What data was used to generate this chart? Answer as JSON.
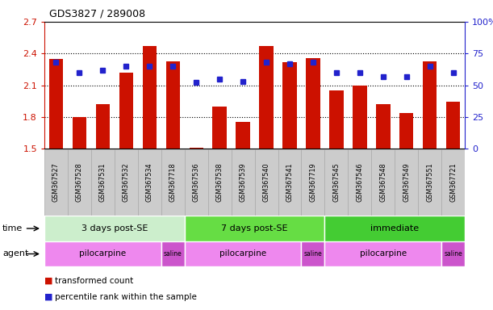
{
  "title": "GDS3827 / 289008",
  "samples": [
    "GSM367527",
    "GSM367528",
    "GSM367531",
    "GSM367532",
    "GSM367534",
    "GSM367718",
    "GSM367536",
    "GSM367538",
    "GSM367539",
    "GSM367540",
    "GSM367541",
    "GSM367719",
    "GSM367545",
    "GSM367546",
    "GSM367548",
    "GSM367549",
    "GSM367551",
    "GSM367721"
  ],
  "bar_values": [
    2.35,
    1.8,
    1.92,
    2.22,
    2.47,
    2.33,
    1.51,
    1.9,
    1.75,
    2.47,
    2.32,
    2.36,
    2.05,
    2.1,
    1.92,
    1.84,
    2.33,
    1.94
  ],
  "blue_pct": [
    68,
    60,
    62,
    65,
    65,
    65,
    52,
    55,
    53,
    68,
    67,
    68,
    60,
    60,
    57,
    57,
    65,
    60
  ],
  "y_min": 1.5,
  "y_max": 2.7,
  "y_left_ticks": [
    1.5,
    1.8,
    2.1,
    2.4,
    2.7
  ],
  "y_right_ticks": [
    0,
    25,
    50,
    75,
    100
  ],
  "bar_color": "#cc1100",
  "blue_color": "#2222cc",
  "time_groups": [
    {
      "label": "3 days post-SE",
      "start": 0,
      "end": 5,
      "color": "#cceecc"
    },
    {
      "label": "7 days post-SE",
      "start": 6,
      "end": 11,
      "color": "#66dd44"
    },
    {
      "label": "immediate",
      "start": 12,
      "end": 17,
      "color": "#44cc33"
    }
  ],
  "agent_groups": [
    {
      "label": "pilocarpine",
      "start": 0,
      "end": 4,
      "color": "#ee88ee"
    },
    {
      "label": "saline",
      "start": 5,
      "end": 5,
      "color": "#cc55cc"
    },
    {
      "label": "pilocarpine",
      "start": 6,
      "end": 10,
      "color": "#ee88ee"
    },
    {
      "label": "saline",
      "start": 11,
      "end": 11,
      "color": "#cc55cc"
    },
    {
      "label": "pilocarpine",
      "start": 12,
      "end": 16,
      "color": "#ee88ee"
    },
    {
      "label": "saline",
      "start": 17,
      "end": 17,
      "color": "#cc55cc"
    }
  ],
  "legend_bar_label": "transformed count",
  "legend_dot_label": "percentile rank within the sample",
  "bg_color": "#ffffff",
  "grid_dotted_at": [
    1.8,
    2.1,
    2.4
  ],
  "left_tick_color": "#cc1100",
  "right_tick_color": "#2222cc",
  "sample_box_color": "#cccccc",
  "sample_box_border": "#aaaaaa"
}
